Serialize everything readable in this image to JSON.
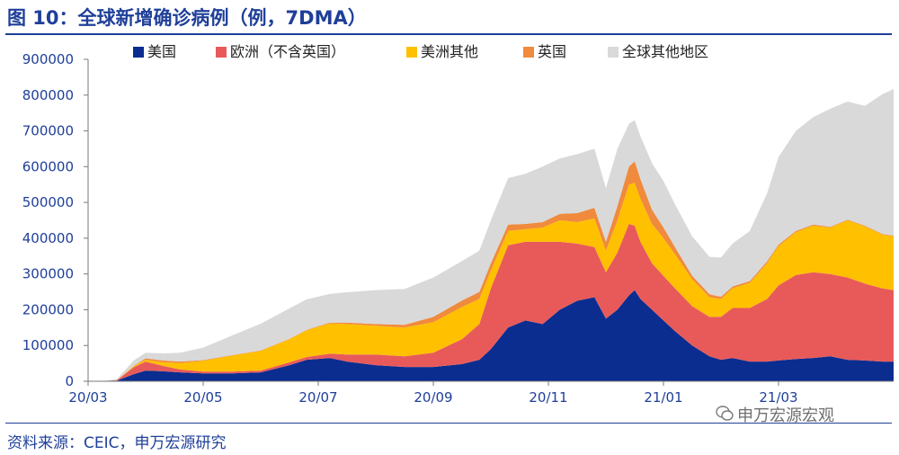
{
  "page": {
    "title": "图 10：全球新增确诊病例（例，7DMA）",
    "source": "资料来源：CEIC，申万宏源研究",
    "watermark": "申万宏源宏观"
  },
  "colors": {
    "us": "#0a2d8f",
    "europe": "#e85a5a",
    "americas_other": "#ffc000",
    "uk": "#f08a3c",
    "rest_world": "#d9d9d9",
    "text_blue": "#1f3f99"
  },
  "chart_data": {
    "type": "area",
    "stacked": true,
    "title": "全球新增确诊病例（例，7DMA）",
    "xlabel": "",
    "ylabel": "",
    "ylim": [
      0,
      900000
    ],
    "yticks": [
      0,
      100000,
      200000,
      300000,
      400000,
      500000,
      600000,
      700000,
      800000,
      900000
    ],
    "ytick_labels": [
      "0",
      "100000",
      "200000",
      "300000",
      "400000",
      "500000",
      "600000",
      "700000",
      "800000",
      "900000"
    ],
    "xlim": [
      0,
      14
    ],
    "xticks": [
      0,
      2,
      4,
      6,
      8,
      10,
      12
    ],
    "xtick_labels": [
      "20/03",
      "20/05",
      "20/07",
      "20/09",
      "20/11",
      "21/01",
      "21/03"
    ],
    "x": [
      0.2,
      0.5,
      0.8,
      1,
      1.3,
      1.6,
      2,
      2.5,
      3,
      3.5,
      3.8,
      4.2,
      4.5,
      5,
      5.5,
      6,
      6.5,
      6.8,
      7,
      7.3,
      7.6,
      7.9,
      8.2,
      8.5,
      8.8,
      9,
      9.2,
      9.4,
      9.5,
      9.6,
      9.8,
      10,
      10.2,
      10.5,
      10.8,
      11,
      11.2,
      11.5,
      11.8,
      12,
      12.3,
      12.6,
      12.9,
      13.2,
      13.5,
      13.8,
      14
    ],
    "legend": {
      "position": "top",
      "labels": [
        "美国",
        "欧洲（不含英国）",
        "美洲其他",
        "英国",
        "全球其他地区"
      ]
    },
    "series": [
      {
        "name": "美国",
        "values": [
          0,
          2000,
          20000,
          30000,
          28000,
          25000,
          22000,
          22000,
          25000,
          45000,
          60000,
          65000,
          55000,
          45000,
          40000,
          40000,
          48000,
          60000,
          90000,
          150000,
          170000,
          160000,
          200000,
          225000,
          235000,
          175000,
          200000,
          240000,
          255000,
          230000,
          200000,
          170000,
          140000,
          100000,
          70000,
          60000,
          65000,
          55000,
          55000,
          58000,
          62000,
          65000,
          70000,
          60000,
          58000,
          55000,
          55000
        ]
      },
      {
        "name": "欧洲（不含英国）",
        "values": [
          0,
          1000,
          20000,
          25000,
          15000,
          8000,
          5000,
          5000,
          5000,
          8000,
          8000,
          12000,
          20000,
          30000,
          30000,
          40000,
          70000,
          100000,
          170000,
          230000,
          220000,
          230000,
          190000,
          160000,
          140000,
          130000,
          160000,
          200000,
          180000,
          160000,
          130000,
          125000,
          120000,
          110000,
          110000,
          120000,
          140000,
          150000,
          175000,
          210000,
          235000,
          240000,
          230000,
          230000,
          215000,
          205000,
          200000
        ]
      },
      {
        "name": "美洲其他",
        "values": [
          0,
          0,
          3000,
          5000,
          10000,
          18000,
          30000,
          45000,
          55000,
          65000,
          75000,
          85000,
          85000,
          80000,
          80000,
          85000,
          90000,
          70000,
          50000,
          40000,
          35000,
          40000,
          60000,
          60000,
          80000,
          60000,
          90000,
          110000,
          120000,
          120000,
          110000,
          105000,
          95000,
          75000,
          55000,
          50000,
          55000,
          70000,
          100000,
          110000,
          120000,
          130000,
          130000,
          160000,
          160000,
          150000,
          150000
        ]
      },
      {
        "name": "英国",
        "values": [
          0,
          0,
          1000,
          4000,
          5000,
          4000,
          2000,
          1000,
          1000,
          1000,
          1000,
          2000,
          4000,
          5000,
          8000,
          15000,
          18000,
          20000,
          20000,
          18000,
          15000,
          15000,
          18000,
          25000,
          30000,
          25000,
          40000,
          50000,
          60000,
          55000,
          40000,
          30000,
          20000,
          10000,
          8000,
          6000,
          5000,
          5000,
          5000,
          4000,
          3000,
          3000,
          2000,
          2000,
          2000,
          2000,
          2000
        ]
      },
      {
        "name": "全球其他地区",
        "values": [
          0,
          3000,
          15000,
          16000,
          20000,
          25000,
          35000,
          55000,
          75000,
          85000,
          85000,
          80000,
          85000,
          95000,
          100000,
          110000,
          110000,
          115000,
          120000,
          130000,
          140000,
          155000,
          155000,
          165000,
          165000,
          150000,
          160000,
          120000,
          115000,
          120000,
          130000,
          130000,
          120000,
          110000,
          105000,
          110000,
          120000,
          140000,
          190000,
          245000,
          280000,
          300000,
          330000,
          330000,
          335000,
          390000,
          410000
        ]
      }
    ]
  }
}
